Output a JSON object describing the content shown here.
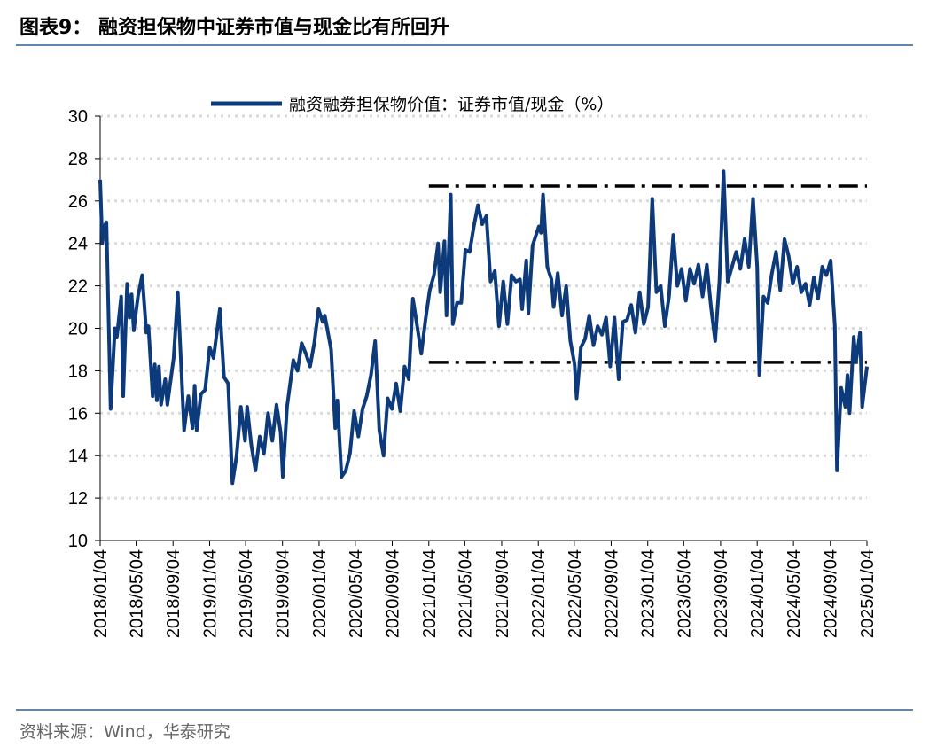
{
  "chart_data": {
    "type": "line",
    "title": "图表9：  融资担保物中证券市值与现金比有所回升",
    "source": "资料来源：Wind，华泰研究",
    "grid": true,
    "ylim": [
      10,
      30
    ],
    "yticks": [
      10,
      12,
      14,
      16,
      18,
      20,
      22,
      24,
      26,
      28,
      30
    ],
    "xlim": [
      "2018/01/04",
      "2025/01/04"
    ],
    "xticks": [
      "2018/01/04",
      "2018/05/04",
      "2018/09/04",
      "2019/01/04",
      "2019/05/04",
      "2019/09/04",
      "2020/01/04",
      "2020/05/04",
      "2020/09/04",
      "2021/01/04",
      "2021/05/04",
      "2021/09/04",
      "2022/01/04",
      "2022/05/04",
      "2022/09/04",
      "2023/01/04",
      "2023/05/04",
      "2023/09/04",
      "2024/01/04",
      "2024/05/04",
      "2024/09/04",
      "2025/01/04"
    ],
    "x": [
      "2018/01/04",
      "2018/01/11",
      "2018/01/18",
      "2018/01/25",
      "2018/02/08",
      "2018/02/22",
      "2018/03/01",
      "2018/03/15",
      "2018/03/22",
      "2018/04/04",
      "2018/04/12",
      "2018/04/19",
      "2018/04/26",
      "2018/05/10",
      "2018/05/24",
      "2018/06/07",
      "2018/06/14",
      "2018/06/28",
      "2018/07/05",
      "2018/07/12",
      "2018/07/19",
      "2018/07/26",
      "2018/08/09",
      "2018/08/16",
      "2018/09/06",
      "2018/09/20",
      "2018/10/11",
      "2018/10/25",
      "2018/11/08",
      "2018/11/15",
      "2018/11/22",
      "2018/12/06",
      "2018/12/20",
      "2019/01/04",
      "2019/01/17",
      "2019/02/07",
      "2019/02/21",
      "2019/03/07",
      "2019/03/21",
      "2019/04/04",
      "2019/04/18",
      "2019/05/02",
      "2019/05/09",
      "2019/05/23",
      "2019/06/06",
      "2019/06/20",
      "2019/07/04",
      "2019/07/18",
      "2019/08/01",
      "2019/08/15",
      "2019/08/29",
      "2019/09/05",
      "2019/09/19",
      "2019/10/10",
      "2019/10/24",
      "2019/11/07",
      "2019/11/21",
      "2019/12/05",
      "2019/12/19",
      "2020/01/02",
      "2020/01/16",
      "2020/01/23",
      "2020/02/13",
      "2020/02/27",
      "2020/03/05",
      "2020/03/19",
      "2020/04/02",
      "2020/04/16",
      "2020/04/30",
      "2020/05/14",
      "2020/05/28",
      "2020/06/11",
      "2020/06/25",
      "2020/07/09",
      "2020/07/23",
      "2020/08/06",
      "2020/08/20",
      "2020/09/03",
      "2020/09/17",
      "2020/10/01",
      "2020/10/15",
      "2020/10/29",
      "2020/11/12",
      "2020/11/26",
      "2020/12/10",
      "2020/12/24",
      "2021/01/07",
      "2021/01/21",
      "2021/02/04",
      "2021/02/11",
      "2021/02/25",
      "2021/03/04",
      "2021/03/18",
      "2021/03/25",
      "2021/04/08",
      "2021/04/22",
      "2021/05/06",
      "2021/05/20",
      "2021/06/03",
      "2021/06/17",
      "2021/07/01",
      "2021/07/15",
      "2021/07/29",
      "2021/08/12",
      "2021/08/26",
      "2021/09/09",
      "2021/09/23",
      "2021/10/07",
      "2021/10/21",
      "2021/11/04",
      "2021/11/11",
      "2021/11/25",
      "2021/12/02",
      "2021/12/16",
      "2022/01/06",
      "2022/01/13",
      "2022/01/20",
      "2022/02/03",
      "2022/02/17",
      "2022/02/24",
      "2022/03/10",
      "2022/03/24",
      "2022/04/07",
      "2022/04/21",
      "2022/05/05",
      "2022/05/12",
      "2022/05/26",
      "2022/06/09",
      "2022/06/23",
      "2022/07/07",
      "2022/07/21",
      "2022/08/04",
      "2022/08/18",
      "2022/09/01",
      "2022/09/15",
      "2022/09/29",
      "2022/10/13",
      "2022/10/27",
      "2022/11/10",
      "2022/11/24",
      "2022/12/08",
      "2022/12/22",
      "2023/01/05",
      "2023/01/19",
      "2023/02/02",
      "2023/02/16",
      "2023/03/02",
      "2023/03/16",
      "2023/03/30",
      "2023/04/13",
      "2023/04/27",
      "2023/05/11",
      "2023/05/25",
      "2023/06/08",
      "2023/06/22",
      "2023/07/06",
      "2023/07/20",
      "2023/08/03",
      "2023/08/17",
      "2023/08/31",
      "2023/09/14",
      "2023/09/28",
      "2023/10/12",
      "2023/10/26",
      "2023/11/09",
      "2023/11/23",
      "2023/12/07",
      "2023/12/21",
      "2024/01/04",
      "2024/01/11",
      "2024/01/25",
      "2024/02/08",
      "2024/02/22",
      "2024/03/07",
      "2024/03/21",
      "2024/04/04",
      "2024/04/18",
      "2024/05/02",
      "2024/05/16",
      "2024/05/30",
      "2024/06/13",
      "2024/06/27",
      "2024/07/11",
      "2024/07/25",
      "2024/08/08",
      "2024/08/22",
      "2024/09/05",
      "2024/09/19",
      "2024/09/26",
      "2024/10/10",
      "2024/10/24",
      "2024/10/31",
      "2024/11/07",
      "2024/11/21",
      "2024/11/28",
      "2024/12/12",
      "2024/12/19",
      "2025/01/04"
    ],
    "series": [
      {
        "name": "融资融券担保物价值：证券市值/现金（%）",
        "color": "#0d3a7a",
        "values": [
          27,
          24,
          24.8,
          25,
          16.2,
          20,
          19.6,
          21.5,
          16.8,
          22.1,
          20.5,
          21.6,
          19.9,
          21.5,
          22.5,
          19.8,
          20.1,
          16.8,
          18.3,
          16.6,
          18.2,
          16.4,
          17.6,
          16.4,
          18.6,
          21.7,
          15.2,
          16.8,
          15.3,
          17.3,
          15.2,
          16.9,
          17.1,
          19.1,
          18.6,
          20.9,
          17.7,
          17.4,
          12.7,
          14.0,
          16.3,
          14.7,
          16.3,
          14.5,
          13.3,
          14.9,
          14.1,
          16.0,
          14.7,
          16.4,
          15.1,
          13.0,
          16.3,
          18.5,
          18.0,
          19.3,
          18.8,
          18.2,
          19.3,
          20.9,
          20.3,
          20.6,
          19.0,
          15.3,
          16.6,
          13.0,
          13.3,
          14.1,
          16.1,
          14.9,
          16.2,
          16.8,
          17.8,
          19.4,
          15.2,
          14.0,
          16.7,
          16.2,
          17.4,
          16.1,
          18.2,
          17.6,
          21.4,
          20.1,
          18.8,
          20.4,
          21.8,
          22.5,
          24.0,
          21.7,
          24.1,
          20.6,
          26.3,
          20.2,
          21.2,
          21.2,
          23.7,
          23.6,
          24.8,
          25.8,
          24.9,
          25.3,
          22.2,
          22.7,
          20.1,
          22.2,
          20.2,
          22.5,
          22.2,
          22.3,
          20.9,
          23.2,
          20.7,
          23.9,
          24.8,
          24.5,
          26.3,
          22.9,
          22.3,
          21.0,
          22.6,
          20.6,
          22.0,
          19.4,
          18.3,
          16.7,
          19.1,
          19.5,
          20.6,
          19.2,
          20.1,
          19.7,
          20.5,
          18.2,
          20.5,
          17.6,
          20.3,
          20.4,
          21.1,
          19.8,
          21.7,
          20.2,
          21.0,
          26.1,
          21.7,
          22.0,
          20.1,
          21.5,
          24.4,
          22.0,
          22.8,
          21.3,
          22.8,
          22.1,
          23.0,
          21.5,
          23.0,
          21.0,
          19.4,
          22.2,
          27.4,
          22.2,
          22.9,
          23.6,
          22.8,
          24.2,
          22.9,
          26.1,
          22.9,
          17.8,
          21.5,
          21.2,
          22.6,
          23.6,
          21.8,
          24.2,
          23.4,
          22.1,
          22.9,
          21.7,
          22.1,
          21.1,
          22.4,
          21.4,
          22.9,
          22.5,
          23.2,
          20.1,
          13.3,
          17.2,
          16.3,
          17.8,
          16.0,
          19.6,
          18.4,
          19.8,
          16.3,
          18.2
        ]
      }
    ],
    "reference_lines": [
      {
        "x": [
          "2021/01/04",
          "2025/01/04"
        ],
        "values": [
          26.7,
          26.7
        ]
      },
      {
        "x": [
          "2021/01/04",
          "2025/01/04"
        ],
        "values": [
          18.4,
          18.4
        ]
      }
    ]
  }
}
